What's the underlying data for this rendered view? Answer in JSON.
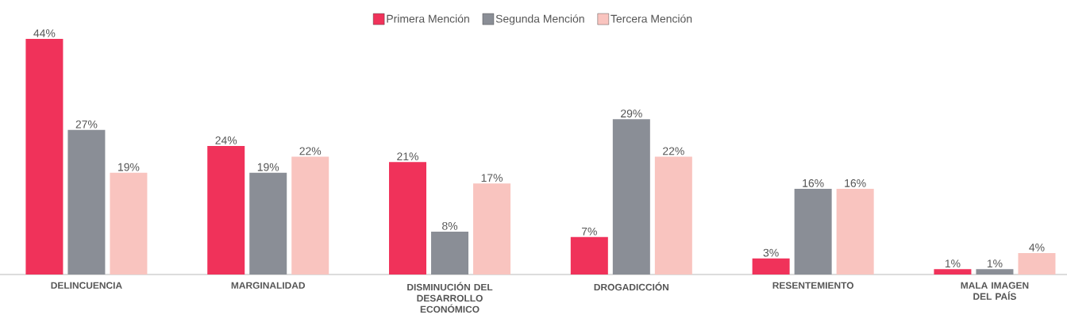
{
  "chart_data": {
    "type": "bar",
    "legend": "top",
    "categories": [
      "DELINCUENCIA",
      "MARGINALIDAD",
      "DISMINUCIÓN DEL DESARROLLO ECONÓMICO",
      "DROGADICCIÓN",
      "RESENTEMIENTO",
      "MALA IMAGEN DEL PAÍS"
    ],
    "series": [
      {
        "name": "Primera Mención",
        "color": "#f0325a",
        "values": [
          44,
          24,
          21,
          7,
          3,
          1
        ],
        "value_labels": [
          "44%",
          "24%",
          "21%",
          "7%",
          "3%",
          "1%"
        ]
      },
      {
        "name": "Segunda Mención",
        "color": "#8a8e96",
        "values": [
          27,
          19,
          8,
          29,
          16,
          1
        ],
        "value_labels": [
          "27%",
          "19%",
          "8%",
          "29%",
          "16%",
          "1%"
        ]
      },
      {
        "name": "Tercera Mención",
        "color": "#f9c4bf",
        "values": [
          19,
          22,
          17,
          22,
          16,
          4
        ],
        "value_labels": [
          "19%",
          "22%",
          "17%",
          "22%",
          "16%",
          "4%"
        ]
      }
    ]
  }
}
